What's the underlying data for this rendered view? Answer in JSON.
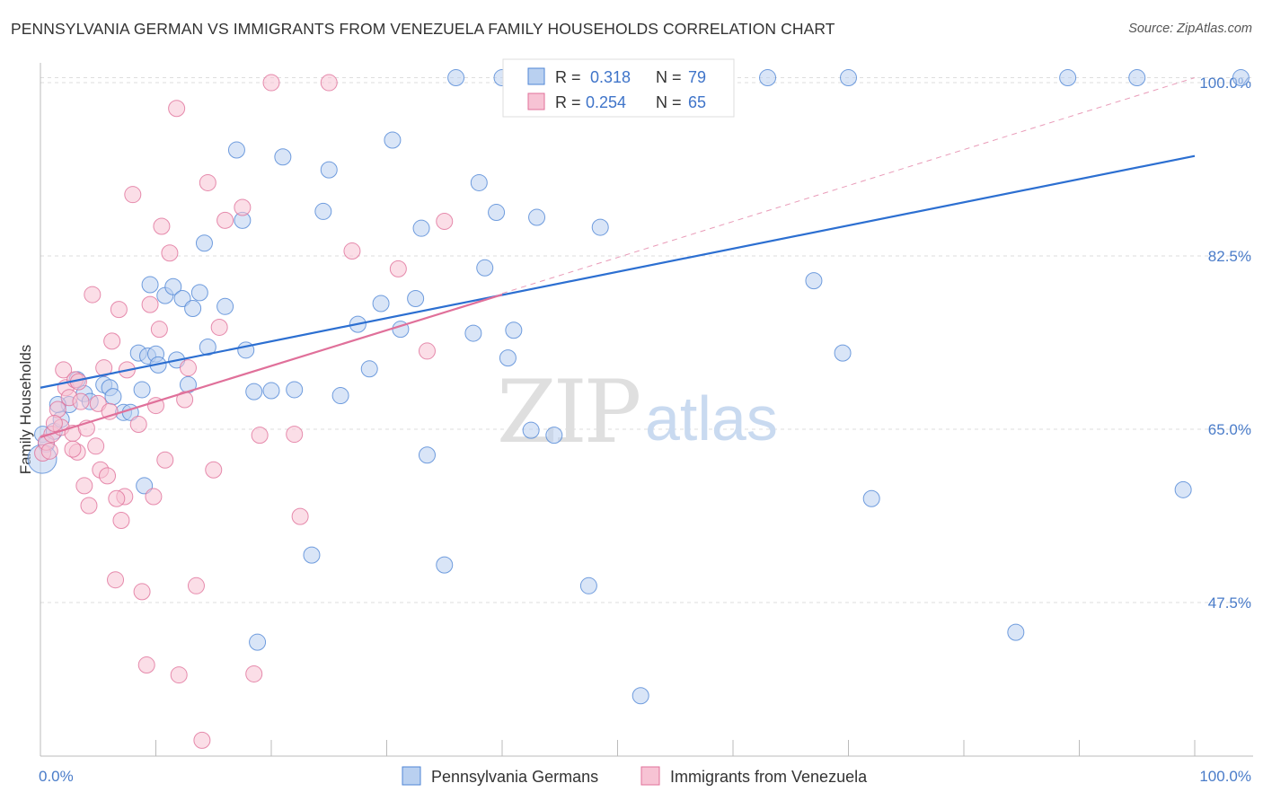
{
  "title": "PENNSYLVANIA GERMAN VS IMMIGRANTS FROM VENEZUELA FAMILY HOUSEHOLDS CORRELATION CHART",
  "source": "Source: ZipAtlas.com",
  "watermark": {
    "zip": "ZIP",
    "atlas": "atlas"
  },
  "colors": {
    "blue": "#4f86d6",
    "blue_fill": "#b9d0f0",
    "pink": "#e0709a",
    "pink_fill": "#f7c3d4",
    "grid": "#dddddd",
    "tick": "#4a7cc9"
  },
  "legend": {
    "r_label": "R =",
    "n_label": "N =",
    "items": [
      {
        "r": "0.318",
        "n": "79"
      },
      {
        "r": "0.254",
        "n": "65"
      }
    ]
  },
  "chart_data": {
    "type": "scatter",
    "title": "PENNSYLVANIA GERMAN VS IMMIGRANTS FROM VENEZUELA FAMILY HOUSEHOLDS CORRELATION CHART",
    "xlabel": "",
    "ylabel": "Family Households",
    "xlim": [
      0,
      100
    ],
    "ylim": [
      32,
      102
    ],
    "x_tick_labels": [
      "0.0%",
      "100.0%"
    ],
    "y_ticks": [
      47.5,
      65.0,
      82.5,
      100.0
    ],
    "y_tick_labels": [
      "47.5%",
      "65.0%",
      "82.5%",
      "100.0%"
    ],
    "grid": true,
    "legend_position": "top-center",
    "series": [
      {
        "name": "Pennsylvania Germans",
        "color": "#4f86d6",
        "trend": {
          "x0": 0,
          "y0": 69.2,
          "x1": 100,
          "y1": 92.6
        },
        "points": [
          [
            0.2,
            64.5
          ],
          [
            0.5,
            63.5
          ],
          [
            1.2,
            64.8
          ],
          [
            1.8,
            66.0
          ],
          [
            2.5,
            67.5
          ],
          [
            3.2,
            70.0
          ],
          [
            3.8,
            68.6
          ],
          [
            4.3,
            67.8
          ],
          [
            5.5,
            69.5
          ],
          [
            6.0,
            69.2
          ],
          [
            6.3,
            68.3
          ],
          [
            7.2,
            66.7
          ],
          [
            7.8,
            66.7
          ],
          [
            8.5,
            72.7
          ],
          [
            8.8,
            69.0
          ],
          [
            9.0,
            59.3
          ],
          [
            9.3,
            72.4
          ],
          [
            9.5,
            79.6
          ],
          [
            10.0,
            72.6
          ],
          [
            10.2,
            71.5
          ],
          [
            10.8,
            78.5
          ],
          [
            11.5,
            79.4
          ],
          [
            11.8,
            72.0
          ],
          [
            12.3,
            78.2
          ],
          [
            12.8,
            69.5
          ],
          [
            13.2,
            77.2
          ],
          [
            13.8,
            78.8
          ],
          [
            14.2,
            83.8
          ],
          [
            14.5,
            73.3
          ],
          [
            17.0,
            93.2
          ],
          [
            16.0,
            77.4
          ],
          [
            17.5,
            86.1
          ],
          [
            17.8,
            73.0
          ],
          [
            18.5,
            68.8
          ],
          [
            18.8,
            43.5
          ],
          [
            20.0,
            68.9
          ],
          [
            21.0,
            92.5
          ],
          [
            22.0,
            69.0
          ],
          [
            23.5,
            52.3
          ],
          [
            24.5,
            87.0
          ],
          [
            25.0,
            91.2
          ],
          [
            26.0,
            68.4
          ],
          [
            27.5,
            75.6
          ],
          [
            28.5,
            71.1
          ],
          [
            29.5,
            77.7
          ],
          [
            30.5,
            94.2
          ],
          [
            31.2,
            75.1
          ],
          [
            32.5,
            78.2
          ],
          [
            33.0,
            85.3
          ],
          [
            33.5,
            62.4
          ],
          [
            35.0,
            51.3
          ],
          [
            36.0,
            100.5
          ],
          [
            37.5,
            74.7
          ],
          [
            38.0,
            89.9
          ],
          [
            38.5,
            81.3
          ],
          [
            39.5,
            86.9
          ],
          [
            40.0,
            100.5
          ],
          [
            40.5,
            72.2
          ],
          [
            41.0,
            75.0
          ],
          [
            42.5,
            64.9
          ],
          [
            43.0,
            86.4
          ],
          [
            44.5,
            64.4
          ],
          [
            47.5,
            49.2
          ],
          [
            48.5,
            85.4
          ],
          [
            52.0,
            38.1
          ],
          [
            55.0,
            100.5
          ],
          [
            58.5,
            100.5
          ],
          [
            63.0,
            100.5
          ],
          [
            67.0,
            80.0
          ],
          [
            69.5,
            72.7
          ],
          [
            70.0,
            100.5
          ],
          [
            72.0,
            58.0
          ],
          [
            84.5,
            44.5
          ],
          [
            89.0,
            100.5
          ],
          [
            95.0,
            100.5
          ],
          [
            99.0,
            58.9
          ],
          [
            104.0,
            100.5
          ],
          [
            0.0,
            62.0
          ],
          [
            1.5,
            67.5
          ]
        ]
      },
      {
        "name": "Immigrants from Venezuela",
        "color": "#e0709a",
        "trend": {
          "x0": 0,
          "y0": 64.2,
          "x1": 40,
          "y1": 78.6
        },
        "points": [
          [
            0.2,
            62.6
          ],
          [
            0.5,
            63.7
          ],
          [
            1.0,
            64.5
          ],
          [
            1.5,
            67.0
          ],
          [
            1.8,
            65.2
          ],
          [
            2.0,
            71.0
          ],
          [
            2.2,
            69.2
          ],
          [
            2.5,
            68.2
          ],
          [
            2.8,
            64.6
          ],
          [
            3.0,
            70.0
          ],
          [
            3.2,
            62.7
          ],
          [
            3.5,
            67.8
          ],
          [
            3.8,
            59.3
          ],
          [
            4.0,
            65.1
          ],
          [
            4.2,
            57.3
          ],
          [
            4.5,
            78.6
          ],
          [
            4.8,
            63.3
          ],
          [
            5.0,
            67.6
          ],
          [
            5.2,
            60.9
          ],
          [
            5.5,
            71.2
          ],
          [
            5.8,
            60.3
          ],
          [
            6.0,
            66.8
          ],
          [
            6.2,
            73.9
          ],
          [
            6.5,
            49.8
          ],
          [
            6.8,
            77.1
          ],
          [
            7.0,
            55.8
          ],
          [
            7.3,
            58.2
          ],
          [
            7.5,
            71.0
          ],
          [
            8.0,
            88.7
          ],
          [
            8.5,
            65.5
          ],
          [
            8.8,
            48.6
          ],
          [
            9.2,
            41.2
          ],
          [
            9.5,
            77.6
          ],
          [
            9.8,
            58.2
          ],
          [
            10.0,
            67.4
          ],
          [
            10.3,
            75.1
          ],
          [
            10.5,
            85.5
          ],
          [
            10.8,
            61.9
          ],
          [
            11.2,
            82.8
          ],
          [
            11.8,
            97.4
          ],
          [
            12.0,
            40.2
          ],
          [
            12.5,
            68.0
          ],
          [
            12.8,
            71.2
          ],
          [
            13.5,
            49.2
          ],
          [
            14.0,
            33.6
          ],
          [
            14.5,
            89.9
          ],
          [
            15.0,
            60.9
          ],
          [
            15.5,
            75.3
          ],
          [
            16.0,
            86.1
          ],
          [
            17.5,
            87.4
          ],
          [
            18.5,
            40.3
          ],
          [
            19.0,
            64.4
          ],
          [
            20.0,
            100.0
          ],
          [
            22.0,
            64.5
          ],
          [
            22.5,
            56.2
          ],
          [
            25.0,
            100.0
          ],
          [
            27.0,
            83.0
          ],
          [
            31.0,
            81.2
          ],
          [
            33.5,
            72.9
          ],
          [
            35.0,
            86.0
          ],
          [
            2.8,
            63.0
          ],
          [
            1.2,
            65.6
          ],
          [
            0.8,
            62.8
          ],
          [
            3.3,
            69.8
          ],
          [
            6.6,
            58.0
          ]
        ]
      }
    ],
    "reference_line": {
      "x0": 0,
      "y0": 64.2,
      "x1": 100,
      "y1": 100.5,
      "style": "dashed"
    }
  },
  "bottom_legend": [
    {
      "label": "Pennsylvania Germans"
    },
    {
      "label": "Immigrants from Venezuela"
    }
  ]
}
